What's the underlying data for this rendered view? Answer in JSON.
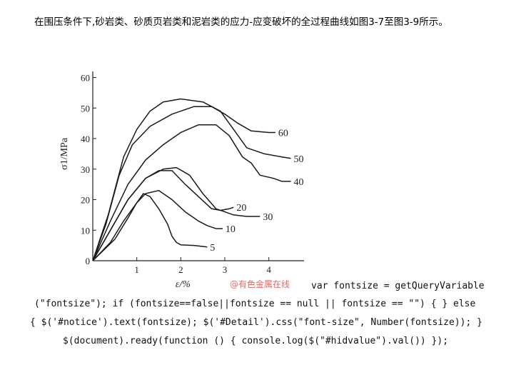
{
  "paragraph": "在围压条件下,砂岩类、砂质页岩类和泥岩类的应力-应变破坏的全过程曲线如图3-7至图3-9所示。",
  "watermark": "@有色金属在线",
  "code_lines": [
    "var fontsize = getQueryVariable",
    "(\"fontsize\"); if (fontsize==false||fontsize == null || fontsize == \"\") { } else",
    "{ $('#notice').text(fontsize); $('#Detail').css(\"font-size\", Number(fontsize)); }",
    "$(document).ready(function () { console.log($(\"#hidvalue\").val()) });"
  ],
  "chart_data": {
    "type": "line",
    "title": "",
    "xlabel": "ε/%",
    "ylabel": "σ1/MPa",
    "xlim": [
      0,
      4.8
    ],
    "ylim": [
      0,
      62
    ],
    "xticks": [
      1,
      2,
      3,
      4
    ],
    "yticks": [
      0,
      10,
      20,
      30,
      40,
      50,
      60
    ],
    "grid": false,
    "legend": "curve labels at line ends",
    "series": [
      {
        "name": "60",
        "points": [
          [
            0,
            0
          ],
          [
            0.3,
            12
          ],
          [
            0.6,
            28
          ],
          [
            0.9,
            38
          ],
          [
            1.3,
            44
          ],
          [
            1.8,
            48
          ],
          [
            2.3,
            50.5
          ],
          [
            2.7,
            50.5
          ],
          [
            3.0,
            48
          ],
          [
            3.3,
            45
          ],
          [
            3.6,
            42.5
          ],
          [
            4.0,
            42
          ],
          [
            4.15,
            42
          ]
        ]
      },
      {
        "name": "50",
        "points": [
          [
            0,
            0
          ],
          [
            0.35,
            15
          ],
          [
            0.7,
            34
          ],
          [
            1.0,
            43
          ],
          [
            1.3,
            49
          ],
          [
            1.6,
            52
          ],
          [
            2.0,
            53
          ],
          [
            2.5,
            52
          ],
          [
            2.9,
            49
          ],
          [
            3.2,
            43
          ],
          [
            3.5,
            37
          ],
          [
            3.9,
            35
          ],
          [
            4.3,
            34
          ],
          [
            4.5,
            33.5
          ]
        ]
      },
      {
        "name": "40",
        "points": [
          [
            0,
            0
          ],
          [
            0.4,
            13
          ],
          [
            0.8,
            25
          ],
          [
            1.2,
            33
          ],
          [
            1.6,
            38
          ],
          [
            2.0,
            42
          ],
          [
            2.4,
            44.5
          ],
          [
            2.8,
            44.5
          ],
          [
            3.1,
            41
          ],
          [
            3.4,
            34
          ],
          [
            3.6,
            32
          ],
          [
            3.8,
            28
          ],
          [
            4.1,
            27
          ],
          [
            4.3,
            26
          ],
          [
            4.5,
            26
          ]
        ]
      },
      {
        "name": "30",
        "points": [
          [
            0,
            0
          ],
          [
            0.4,
            10
          ],
          [
            0.8,
            20
          ],
          [
            1.2,
            27
          ],
          [
            1.6,
            30
          ],
          [
            1.9,
            30.5
          ],
          [
            2.2,
            28
          ],
          [
            2.5,
            22
          ],
          [
            2.8,
            17
          ],
          [
            3.0,
            16
          ],
          [
            3.2,
            15
          ],
          [
            3.5,
            14.5
          ],
          [
            3.8,
            14.5
          ]
        ]
      },
      {
        "name": "20",
        "points": [
          [
            0,
            0
          ],
          [
            0.4,
            10
          ],
          [
            0.8,
            20
          ],
          [
            1.2,
            27
          ],
          [
            1.5,
            29.5
          ],
          [
            1.8,
            29.5
          ],
          [
            2.1,
            25
          ],
          [
            2.4,
            21
          ],
          [
            2.7,
            17
          ],
          [
            2.9,
            16.5
          ],
          [
            3.1,
            17
          ],
          [
            3.2,
            17.5
          ]
        ]
      },
      {
        "name": "10",
        "points": [
          [
            0,
            0
          ],
          [
            0.5,
            7
          ],
          [
            0.8,
            14
          ],
          [
            1.0,
            19
          ],
          [
            1.2,
            22
          ],
          [
            1.5,
            23
          ],
          [
            1.8,
            20
          ],
          [
            2.1,
            16
          ],
          [
            2.4,
            13
          ],
          [
            2.6,
            11.5
          ],
          [
            2.8,
            10.5
          ],
          [
            2.95,
            10.5
          ]
        ]
      },
      {
        "name": "5",
        "points": [
          [
            0,
            0
          ],
          [
            0.4,
            6
          ],
          [
            0.7,
            13
          ],
          [
            1.0,
            19
          ],
          [
            1.15,
            22
          ],
          [
            1.3,
            21
          ],
          [
            1.5,
            17
          ],
          [
            1.7,
            12
          ],
          [
            1.8,
            8
          ],
          [
            1.9,
            6
          ],
          [
            2.0,
            5.2
          ],
          [
            2.3,
            5
          ],
          [
            2.6,
            4.5
          ]
        ]
      }
    ]
  }
}
